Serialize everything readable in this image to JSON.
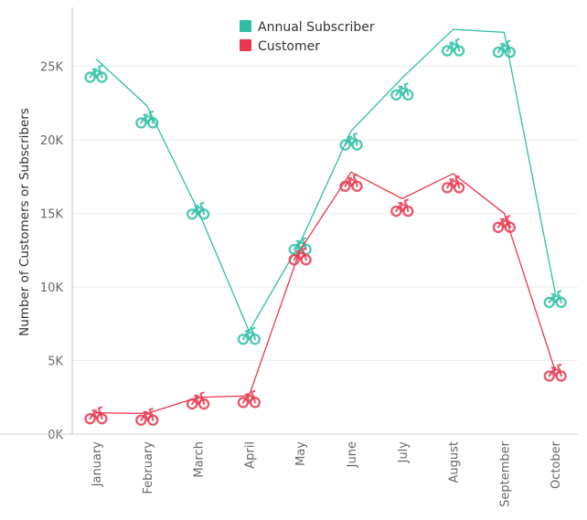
{
  "chart_data": {
    "type": "line",
    "categories": [
      "January",
      "February",
      "March",
      "April",
      "May",
      "June",
      "July",
      "August",
      "September",
      "October"
    ],
    "series": [
      {
        "name": "Annual Subscriber",
        "color": "#2ebfa5",
        "values": [
          25500,
          22300,
          15200,
          7000,
          13000,
          20600,
          24200,
          27500,
          27300,
          9600
        ],
        "marker_values": [
          24400,
          21300,
          15100,
          6600,
          12700,
          19800,
          23200,
          26200,
          26100,
          9100
        ]
      },
      {
        "name": "Customer",
        "color": "#e8384f",
        "values": [
          1450,
          1400,
          2500,
          2600,
          12500,
          17800,
          16000,
          17700,
          15000,
          4300
        ],
        "marker_values": [
          1200,
          1100,
          2200,
          2300,
          12000,
          17000,
          15300,
          16900,
          14200,
          4100
        ]
      }
    ],
    "ylabel": "Number of Customers or Subscribers",
    "xlabel": "",
    "ylim": [
      0,
      29000
    ],
    "yticks": [
      0,
      5000,
      10000,
      15000,
      20000,
      25000
    ],
    "ytick_labels": [
      "0K",
      "5K",
      "10K",
      "15K",
      "20K",
      "25K"
    ],
    "grid": true,
    "legend_position": "top-center",
    "marker_icon": "bicycle-icon"
  }
}
